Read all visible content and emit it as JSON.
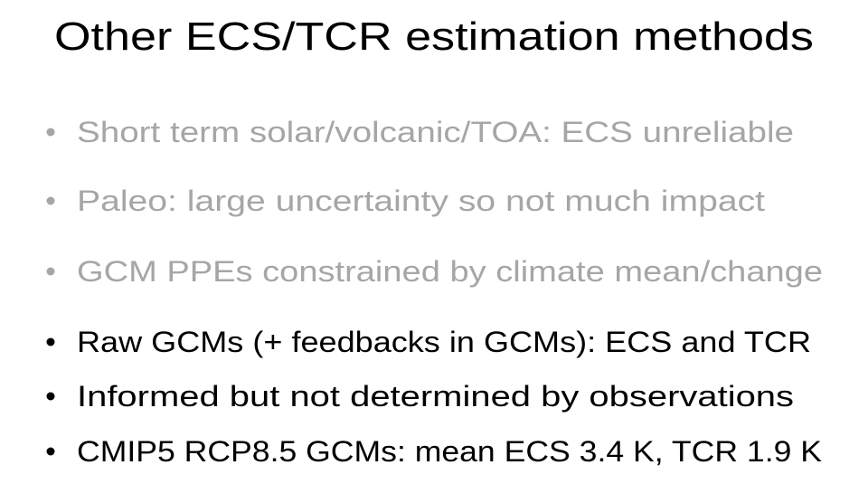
{
  "title": "Other ECS/TCR estimation methods",
  "bullets": [
    "Short term solar/volcanic/TOA: ECS unreliable",
    "Paleo: large uncertainty so not much impact",
    "GCM PPEs constrained by climate mean/change",
    "Raw GCMs (+ feedbacks in GCMs): ECS and TCR",
    "Informed but not determined by observations",
    "CMIP5 RCP8.5 GCMs: mean ECS 3.4 K, TCR 1.9 K"
  ]
}
